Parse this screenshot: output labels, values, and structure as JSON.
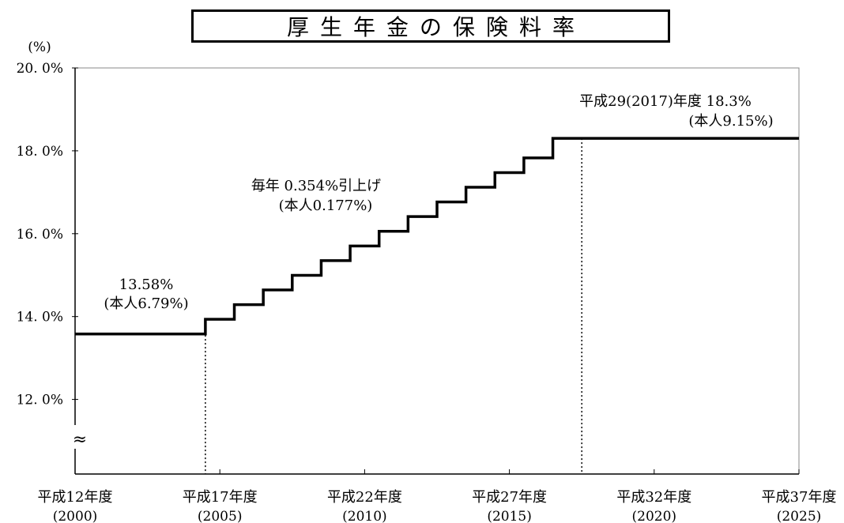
{
  "title": "厚生年金の保険料率",
  "chart_data": {
    "type": "line",
    "step": true,
    "ylabel": "(%)",
    "ylim": [
      10.2,
      20.0
    ],
    "yticks": [
      12.0,
      14.0,
      16.0,
      18.0,
      20.0
    ],
    "ytick_labels": [
      "12. 0%",
      "14. 0%",
      "16. 0%",
      "18. 0%",
      "20. 0%"
    ],
    "axis_break_marker": "≈",
    "xlim": [
      2000,
      2025
    ],
    "xticks": [
      {
        "value": 2000,
        "era": "平成12年度",
        "year": "(2000)"
      },
      {
        "value": 2005,
        "era": "平成17年度",
        "year": "(2005)"
      },
      {
        "value": 2010,
        "era": "平成22年度",
        "year": "(2010)"
      },
      {
        "value": 2015,
        "era": "平成27年度",
        "year": "(2015)"
      },
      {
        "value": 2020,
        "era": "平成32年度",
        "year": "(2020)"
      },
      {
        "value": 2025,
        "era": "平成37年度",
        "year": "(2025)"
      }
    ],
    "series": [
      {
        "x": [
          2000,
          2004.5,
          2005.5,
          2006.5,
          2007.5,
          2008.5,
          2009.5,
          2010.5,
          2011.5,
          2012.5,
          2013.5,
          2014.5,
          2015.5,
          2016.5,
          2025
        ],
        "y": [
          13.58,
          13.934,
          14.288,
          14.642,
          14.996,
          15.35,
          15.704,
          16.058,
          16.412,
          16.766,
          17.12,
          17.474,
          17.828,
          18.3,
          18.3
        ],
        "color": "#000000"
      }
    ],
    "reference_lines": [
      2004.5,
      2017.5
    ],
    "annotations": [
      {
        "id": "start",
        "lines": [
          "13.58%",
          "(本人6.79%)"
        ]
      },
      {
        "id": "increment",
        "lines": [
          "毎年 0.354%引上げ",
          "(本人0.177%)"
        ]
      },
      {
        "id": "final",
        "lines": [
          "平成29(2017)年度  18.3%",
          "(本人9.15%)"
        ]
      }
    ],
    "grid": false,
    "legend": "none"
  }
}
